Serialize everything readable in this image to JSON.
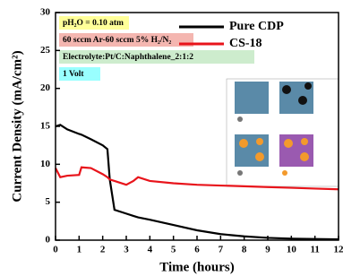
{
  "chart_data": {
    "type": "line",
    "xlabel": "Time (hours)",
    "ylabel": "Current Density (mA/cm²)",
    "annotations": [
      "pH₂O = 0.10 atm",
      "60 sccm Ar-60 sccm 5% H₂/N₂",
      "Electrolyte:Pt/C:Naphthalene_2:1:2",
      "1 Volt"
    ],
    "x": [
      0,
      0.2,
      0.5,
      1,
      1.1,
      1.5,
      2,
      2.2,
      2.3,
      2.5,
      3,
      3.3,
      3.5,
      4,
      5,
      6,
      7,
      8,
      9,
      10,
      11,
      12
    ],
    "series": [
      {
        "name": "Pure CDP",
        "color": "#000000",
        "values": [
          15,
          15.2,
          14.6,
          14,
          13.9,
          13.3,
          12.5,
          12,
          8,
          4,
          3.5,
          3.2,
          3,
          2.7,
          2,
          1.3,
          0.8,
          0.5,
          0.3,
          0.2,
          0.15,
          0.1
        ]
      },
      {
        "name": "CS-18",
        "color": "#e8141b",
        "values": [
          9.5,
          8.3,
          8.5,
          8.6,
          9.6,
          9.5,
          8.7,
          8.3,
          8,
          7.8,
          7.3,
          7.8,
          8.3,
          7.8,
          7.5,
          7.3,
          7.2,
          7.1,
          7,
          6.9,
          6.8,
          6.7
        ]
      }
    ],
    "xlim": [
      0,
      12
    ],
    "xticks": [
      0,
      1,
      2,
      3,
      4,
      5,
      6,
      7,
      8,
      9,
      10,
      11,
      12
    ],
    "ylim": [
      0,
      30
    ],
    "yticks": [
      0,
      5,
      10,
      15,
      20,
      25,
      30
    ],
    "legend": "upper right"
  }
}
